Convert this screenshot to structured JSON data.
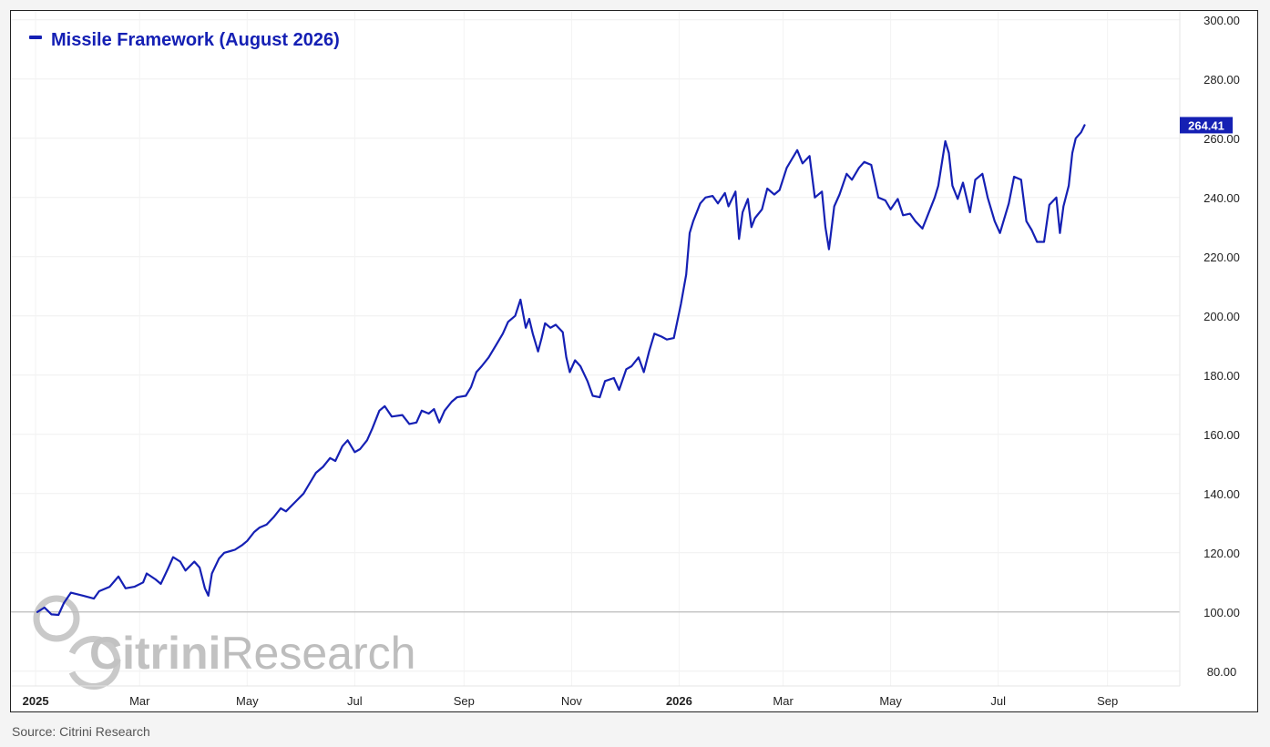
{
  "chart_data": {
    "type": "line",
    "legend_position": "top-left",
    "series": [
      {
        "name": "Missile Framework (August 2026)",
        "color": "#1520b4",
        "last_value_label": "264.41",
        "points": [
          [
            "2025-01-02",
            100.0
          ],
          [
            "2025-01-06",
            101.5
          ],
          [
            "2025-01-10",
            99.2
          ],
          [
            "2025-01-14",
            99.0
          ],
          [
            "2025-01-17",
            103.0
          ],
          [
            "2025-01-21",
            106.5
          ],
          [
            "2025-01-28",
            105.5
          ],
          [
            "2025-02-03",
            104.5
          ],
          [
            "2025-02-06",
            107.0
          ],
          [
            "2025-02-12",
            108.5
          ],
          [
            "2025-02-17",
            112.0
          ],
          [
            "2025-02-21",
            108.0
          ],
          [
            "2025-02-26",
            108.5
          ],
          [
            "2025-03-03",
            110.0
          ],
          [
            "2025-03-05",
            113.0
          ],
          [
            "2025-03-10",
            111.0
          ],
          [
            "2025-03-13",
            109.5
          ],
          [
            "2025-03-17",
            114.5
          ],
          [
            "2025-03-20",
            118.5
          ],
          [
            "2025-03-24",
            117.0
          ],
          [
            "2025-03-27",
            114.0
          ],
          [
            "2025-04-01",
            117.0
          ],
          [
            "2025-04-04",
            115.0
          ],
          [
            "2025-04-07",
            108.0
          ],
          [
            "2025-04-09",
            105.5
          ],
          [
            "2025-04-11",
            113.0
          ],
          [
            "2025-04-15",
            118.0
          ],
          [
            "2025-04-18",
            120.0
          ],
          [
            "2025-04-24",
            121.0
          ],
          [
            "2025-04-28",
            122.5
          ],
          [
            "2025-05-01",
            124.0
          ],
          [
            "2025-05-05",
            127.0
          ],
          [
            "2025-05-08",
            128.5
          ],
          [
            "2025-05-12",
            129.5
          ],
          [
            "2025-05-16",
            132.0
          ],
          [
            "2025-05-20",
            135.0
          ],
          [
            "2025-05-23",
            134.0
          ],
          [
            "2025-05-28",
            137.0
          ],
          [
            "2025-06-02",
            140.0
          ],
          [
            "2025-06-05",
            143.0
          ],
          [
            "2025-06-09",
            147.0
          ],
          [
            "2025-06-13",
            149.0
          ],
          [
            "2025-06-17",
            152.0
          ],
          [
            "2025-06-20",
            151.0
          ],
          [
            "2025-06-24",
            156.0
          ],
          [
            "2025-06-27",
            158.0
          ],
          [
            "2025-07-01",
            154.0
          ],
          [
            "2025-07-04",
            155.0
          ],
          [
            "2025-07-08",
            158.0
          ],
          [
            "2025-07-11",
            162.0
          ],
          [
            "2025-07-15",
            168.0
          ],
          [
            "2025-07-18",
            169.5
          ],
          [
            "2025-07-22",
            166.0
          ],
          [
            "2025-07-28",
            166.5
          ],
          [
            "2025-08-01",
            163.5
          ],
          [
            "2025-08-05",
            164.0
          ],
          [
            "2025-08-08",
            168.0
          ],
          [
            "2025-08-12",
            167.0
          ],
          [
            "2025-08-15",
            168.5
          ],
          [
            "2025-08-18",
            164.0
          ],
          [
            "2025-08-21",
            168.0
          ],
          [
            "2025-08-25",
            171.0
          ],
          [
            "2025-08-28",
            172.5
          ],
          [
            "2025-09-02",
            173.0
          ],
          [
            "2025-09-05",
            176.0
          ],
          [
            "2025-09-08",
            181.0
          ],
          [
            "2025-09-11",
            183.0
          ],
          [
            "2025-09-15",
            186.0
          ],
          [
            "2025-09-19",
            190.0
          ],
          [
            "2025-09-23",
            194.0
          ],
          [
            "2025-09-26",
            198.0
          ],
          [
            "2025-09-30",
            200.0
          ],
          [
            "2025-10-03",
            205.5
          ],
          [
            "2025-10-06",
            196.0
          ],
          [
            "2025-10-08",
            199.0
          ],
          [
            "2025-10-10",
            194.0
          ],
          [
            "2025-10-13",
            188.0
          ],
          [
            "2025-10-15",
            192.5
          ],
          [
            "2025-10-17",
            197.5
          ],
          [
            "2025-10-20",
            196.0
          ],
          [
            "2025-10-23",
            197.0
          ],
          [
            "2025-10-27",
            194.5
          ],
          [
            "2025-10-29",
            186.0
          ],
          [
            "2025-10-31",
            181.0
          ],
          [
            "2025-11-03",
            185.0
          ],
          [
            "2025-11-06",
            183.0
          ],
          [
            "2025-11-10",
            178.0
          ],
          [
            "2025-11-13",
            173.0
          ],
          [
            "2025-11-17",
            172.5
          ],
          [
            "2025-11-20",
            178.0
          ],
          [
            "2025-11-25",
            179.0
          ],
          [
            "2025-11-28",
            175.0
          ],
          [
            "2025-12-02",
            182.0
          ],
          [
            "2025-12-05",
            183.0
          ],
          [
            "2025-12-09",
            186.0
          ],
          [
            "2025-12-12",
            181.0
          ],
          [
            "2025-12-15",
            188.0
          ],
          [
            "2025-12-18",
            194.0
          ],
          [
            "2025-12-22",
            193.0
          ],
          [
            "2025-12-25",
            192.0
          ],
          [
            "2025-12-29",
            192.5
          ],
          [
            "2026-01-02",
            204.0
          ],
          [
            "2026-01-05",
            214.0
          ],
          [
            "2026-01-07",
            228.0
          ],
          [
            "2026-01-09",
            232.0
          ],
          [
            "2026-01-13",
            238.0
          ],
          [
            "2026-01-16",
            240.0
          ],
          [
            "2026-01-20",
            240.5
          ],
          [
            "2026-01-23",
            238.0
          ],
          [
            "2026-01-27",
            241.5
          ],
          [
            "2026-01-29",
            237.0
          ],
          [
            "2026-02-02",
            242.0
          ],
          [
            "2026-02-04",
            226.0
          ],
          [
            "2026-02-06",
            235.0
          ],
          [
            "2026-02-09",
            239.5
          ],
          [
            "2026-02-11",
            230.0
          ],
          [
            "2026-02-13",
            233.0
          ],
          [
            "2026-02-17",
            236.0
          ],
          [
            "2026-02-20",
            243.0
          ],
          [
            "2026-02-24",
            241.0
          ],
          [
            "2026-02-27",
            242.5
          ],
          [
            "2026-03-03",
            250.0
          ],
          [
            "2026-03-06",
            253.0
          ],
          [
            "2026-03-09",
            256.0
          ],
          [
            "2026-03-12",
            251.5
          ],
          [
            "2026-03-16",
            254.0
          ],
          [
            "2026-03-19",
            240.0
          ],
          [
            "2026-03-23",
            242.0
          ],
          [
            "2026-03-25",
            230.0
          ],
          [
            "2026-03-27",
            222.5
          ],
          [
            "2026-03-30",
            237.0
          ],
          [
            "2026-04-02",
            241.0
          ],
          [
            "2026-04-06",
            248.0
          ],
          [
            "2026-04-09",
            246.0
          ],
          [
            "2026-04-13",
            250.0
          ],
          [
            "2026-04-16",
            252.0
          ],
          [
            "2026-04-20",
            251.0
          ],
          [
            "2026-04-24",
            240.0
          ],
          [
            "2026-04-28",
            239.0
          ],
          [
            "2026-05-01",
            236.0
          ],
          [
            "2026-05-05",
            239.5
          ],
          [
            "2026-05-08",
            234.0
          ],
          [
            "2026-05-12",
            234.5
          ],
          [
            "2026-05-15",
            232.0
          ],
          [
            "2026-05-19",
            229.5
          ],
          [
            "2026-05-22",
            234.0
          ],
          [
            "2026-05-26",
            240.0
          ],
          [
            "2026-05-28",
            244.0
          ],
          [
            "2026-06-01",
            259.0
          ],
          [
            "2026-06-03",
            255.0
          ],
          [
            "2026-06-05",
            244.0
          ],
          [
            "2026-06-08",
            239.5
          ],
          [
            "2026-06-11",
            245.0
          ],
          [
            "2026-06-15",
            235.0
          ],
          [
            "2026-06-18",
            246.0
          ],
          [
            "2026-06-22",
            248.0
          ],
          [
            "2026-06-25",
            240.0
          ],
          [
            "2026-06-29",
            232.0
          ],
          [
            "2026-07-02",
            228.0
          ],
          [
            "2026-07-07",
            238.0
          ],
          [
            "2026-07-10",
            247.0
          ],
          [
            "2026-07-14",
            246.0
          ],
          [
            "2026-07-17",
            232.0
          ],
          [
            "2026-07-20",
            229.0
          ],
          [
            "2026-07-23",
            225.0
          ],
          [
            "2026-07-27",
            225.0
          ],
          [
            "2026-07-30",
            237.5
          ],
          [
            "2026-08-03",
            240.0
          ],
          [
            "2026-08-05",
            228.0
          ],
          [
            "2026-08-07",
            237.0
          ],
          [
            "2026-08-10",
            244.0
          ],
          [
            "2026-08-12",
            255.0
          ],
          [
            "2026-08-14",
            260.0
          ],
          [
            "2026-08-17",
            262.0
          ],
          [
            "2026-08-19",
            264.41
          ]
        ]
      }
    ],
    "x_axis": {
      "type": "time",
      "range": [
        "2024-12-18",
        "2026-10-12"
      ],
      "ticks": [
        {
          "date": "2025-01-01",
          "label": "2025",
          "bold": true
        },
        {
          "date": "2025-03-01",
          "label": "Mar"
        },
        {
          "date": "2025-05-01",
          "label": "May"
        },
        {
          "date": "2025-07-01",
          "label": "Jul"
        },
        {
          "date": "2025-09-01",
          "label": "Sep"
        },
        {
          "date": "2025-11-01",
          "label": "Nov"
        },
        {
          "date": "2026-01-01",
          "label": "2026",
          "bold": true
        },
        {
          "date": "2026-03-01",
          "label": "Mar"
        },
        {
          "date": "2026-05-01",
          "label": "May"
        },
        {
          "date": "2026-07-01",
          "label": "Jul"
        },
        {
          "date": "2026-09-01",
          "label": "Sep"
        }
      ]
    },
    "y_axis": {
      "position": "right",
      "range": [
        75,
        303
      ],
      "ticks": [
        80,
        100,
        120,
        140,
        160,
        180,
        200,
        220,
        240,
        260,
        280,
        300
      ],
      "tick_labels": [
        "80.00",
        "100.00",
        "120.00",
        "140.00",
        "160.00",
        "180.00",
        "200.00",
        "220.00",
        "240.00",
        "260.00",
        "280.00",
        "300.00"
      ],
      "baseline": 100
    },
    "grid": true
  },
  "watermark": {
    "brand_bold": "Citrini",
    "brand_light": "Research"
  },
  "source": "Source: Citrini Research"
}
